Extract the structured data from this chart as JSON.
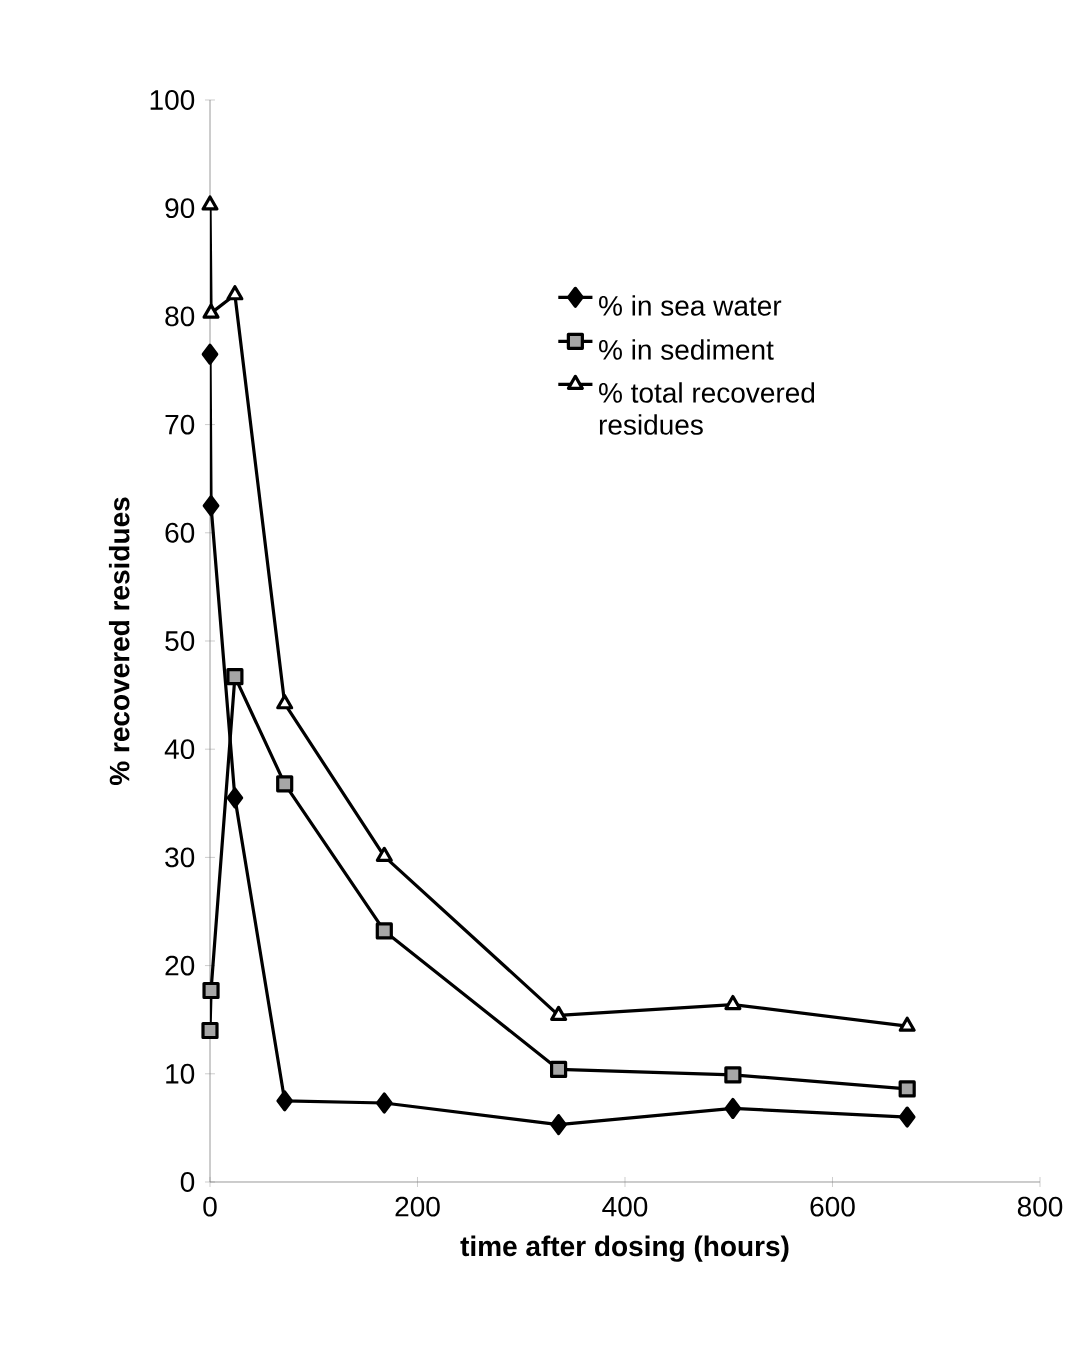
{
  "chart_data": {
    "type": "line",
    "xlabel": "time after dosing (hours)",
    "ylabel": "% recovered residues",
    "xlim": [
      0,
      800
    ],
    "xticks": [
      0,
      200,
      400,
      600,
      800
    ],
    "ylim": [
      0,
      100
    ],
    "yticks": [
      0,
      10,
      20,
      30,
      40,
      50,
      60,
      70,
      80,
      90,
      100
    ],
    "grid": false,
    "legend": "top right",
    "line_style": "solid",
    "series": [
      {
        "name": "% in sea water",
        "color": "#000000",
        "marker": "diamond",
        "x": [
          0,
          1,
          24,
          72,
          168,
          336,
          504,
          672
        ],
        "values": [
          76.5,
          62.5,
          35.5,
          7.5,
          7.3,
          5.3,
          6.8,
          6.0
        ]
      },
      {
        "name": "% in sediment",
        "color": "#000000",
        "marker": "square",
        "x": [
          0,
          1,
          24,
          72,
          168,
          336,
          504,
          672
        ],
        "values": [
          14.0,
          17.7,
          46.7,
          36.8,
          23.2,
          10.4,
          9.9,
          8.6
        ]
      },
      {
        "name": "% total recovered residues",
        "color": "#000000",
        "marker": "triangle",
        "x": [
          0,
          1,
          24,
          72,
          168,
          336,
          504,
          672
        ],
        "values": [
          90.3,
          80.3,
          82.0,
          44.2,
          30.1,
          15.4,
          16.4,
          14.4
        ]
      }
    ]
  }
}
